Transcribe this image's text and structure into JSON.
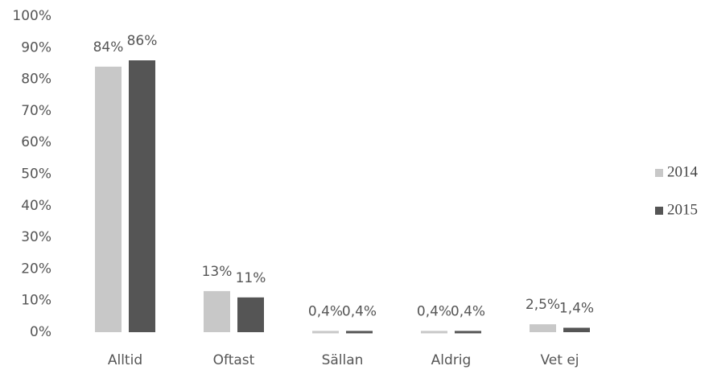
{
  "chart_data": {
    "type": "bar",
    "categories": [
      "Alltid",
      "Oftast",
      "Sällan",
      "Aldrig",
      "Vet ej"
    ],
    "series": [
      {
        "name": "2014",
        "color": "#c8c8c8",
        "values": [
          84,
          13,
          0.4,
          0.4,
          2.5
        ],
        "value_labels": [
          "84%",
          "13%",
          "0,4%",
          "0,4%",
          "2,5%"
        ]
      },
      {
        "name": "2015",
        "color": "#555555",
        "values": [
          86,
          11,
          0.4,
          0.4,
          1.4
        ],
        "value_labels": [
          "86%",
          "11%",
          "0,4%",
          "0,4%",
          "1,4%"
        ]
      }
    ],
    "ylim": [
      0,
      100
    ],
    "yticks": [
      {
        "value": 0,
        "label": "0%"
      },
      {
        "value": 10,
        "label": "10%"
      },
      {
        "value": 20,
        "label": "20%"
      },
      {
        "value": 30,
        "label": "30%"
      },
      {
        "value": 40,
        "label": "40%"
      },
      {
        "value": 50,
        "label": "50%"
      },
      {
        "value": 60,
        "label": "60%"
      },
      {
        "value": 70,
        "label": "70%"
      },
      {
        "value": 80,
        "label": "80%"
      },
      {
        "value": 90,
        "label": "90%"
      },
      {
        "value": 100,
        "label": "100%"
      }
    ],
    "grid": false,
    "legend": "right"
  }
}
